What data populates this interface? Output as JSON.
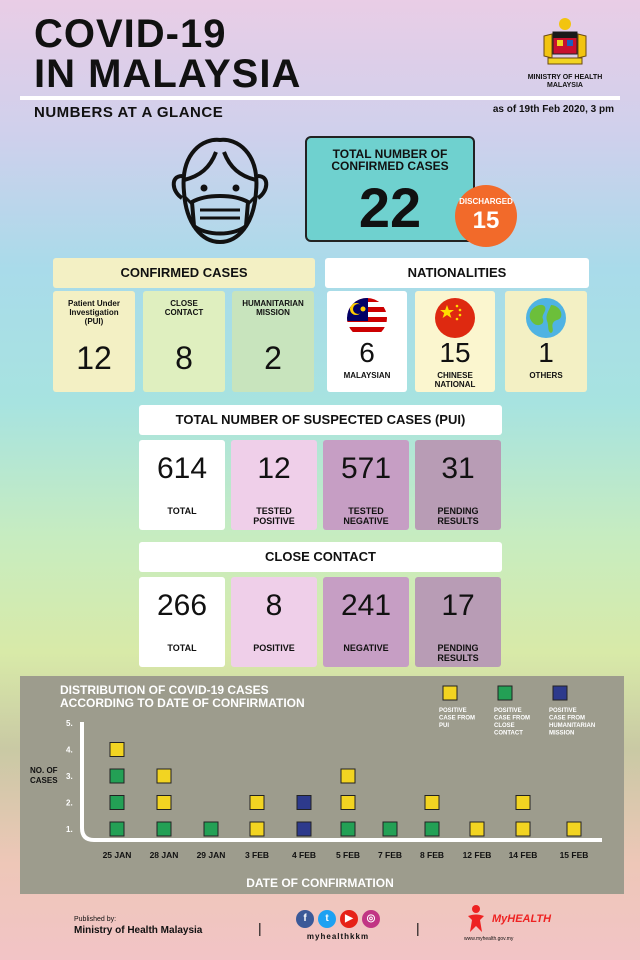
{
  "header": {
    "title_line1": "COVID-19",
    "title_line2": "IN MALAYSIA",
    "subtitle": "NUMBERS AT A GLANCE",
    "as_of": "as of 19th Feb 2020, 3 pm",
    "ministry_label_1": "MINISTRY OF HEALTH",
    "ministry_label_2": "MALAYSIA"
  },
  "total_confirmed": {
    "label_1": "TOTAL NUMBER OF",
    "label_2": "CONFIRMED CASES",
    "value": "22"
  },
  "discharged": {
    "label": "DISCHARGED",
    "value": "15"
  },
  "confirmed_cases": {
    "header": "CONFIRMED CASES",
    "items": [
      {
        "label": "Patient Under Investigation (PUI)",
        "value": "12"
      },
      {
        "label": "CLOSE CONTACT",
        "value": "8"
      },
      {
        "label": "HUMANITARIAN MISSION",
        "value": "2"
      }
    ]
  },
  "nationalities": {
    "header": "NATIONALITIES",
    "items": [
      {
        "label": "MALAYSIAN",
        "value": "6",
        "icon": "malaysia-flag-icon"
      },
      {
        "label_1": "CHINESE",
        "label_2": "NATIONAL",
        "value": "15",
        "icon": "china-flag-icon"
      },
      {
        "label": "OTHERS",
        "value": "1",
        "icon": "globe-icon"
      }
    ]
  },
  "suspected": {
    "header": "TOTAL NUMBER OF SUSPECTED CASES (PUI)",
    "items": [
      {
        "value": "614",
        "label_1": "TOTAL",
        "label_2": ""
      },
      {
        "value": "12",
        "label_1": "TESTED",
        "label_2": "POSITIVE"
      },
      {
        "value": "571",
        "label_1": "TESTED",
        "label_2": "NEGATIVE"
      },
      {
        "value": "31",
        "label_1": "PENDING",
        "label_2": "RESULTS"
      }
    ]
  },
  "close_contact": {
    "header": "CLOSE CONTACT",
    "items": [
      {
        "value": "266",
        "label_1": "TOTAL",
        "label_2": ""
      },
      {
        "value": "8",
        "label_1": "POSITIVE",
        "label_2": ""
      },
      {
        "value": "241",
        "label_1": "NEGATIVE",
        "label_2": ""
      },
      {
        "value": "17",
        "label_1": "PENDING",
        "label_2": "RESULTS"
      }
    ]
  },
  "colors": {
    "pui": "#f2d422",
    "close_contact": "#23a055",
    "humanitarian": "#2d3a8c",
    "chart_bg": "#9d9c8d",
    "total_box": "#6fd1cf",
    "discharged": "#f26a2a"
  },
  "chart_data": {
    "type": "scatter",
    "title_1": "DISTRIBUTION OF COVID-19 CASES",
    "title_2": "ACCORDING TO DATE OF CONFIRMATION",
    "ylabel_1": "NO. OF",
    "ylabel_2": "CASES",
    "xlabel": "DATE OF CONFIRMATION",
    "yticks": [
      "1.",
      "2.",
      "3.",
      "4.",
      "5."
    ],
    "categories": [
      "25 JAN",
      "28 JAN",
      "29 JAN",
      "3 FEB",
      "4 FEB",
      "5 FEB",
      "7 FEB",
      "8 FEB",
      "12 FEB",
      "14 FEB",
      "15 FEB"
    ],
    "legend": [
      {
        "name_1": "POSITIVE",
        "name_2": "CASE FROM",
        "name_3": "PUI",
        "name_4": "",
        "color": "#f2d422"
      },
      {
        "name_1": "POSITIVE",
        "name_2": "CASE FROM",
        "name_3": "CLOSE",
        "name_4": "CONTACT",
        "color": "#23a055"
      },
      {
        "name_1": "POSITIVE",
        "name_2": "CASE FROM",
        "name_3": "HUMANITARIAN",
        "name_4": "MISSION",
        "color": "#2d3a8c"
      }
    ],
    "stacks": [
      [
        "close_contact",
        "close_contact",
        "close_contact",
        "pui"
      ],
      [
        "close_contact",
        "pui",
        "pui"
      ],
      [
        "close_contact"
      ],
      [
        "pui",
        "pui"
      ],
      [
        "humanitarian",
        "humanitarian"
      ],
      [
        "close_contact",
        "pui",
        "pui"
      ],
      [
        "close_contact"
      ],
      [
        "close_contact",
        "pui"
      ],
      [
        "pui"
      ],
      [
        "pui",
        "pui"
      ],
      [
        "pui"
      ]
    ]
  },
  "footer": {
    "published_by": "Published by:",
    "ministry": "Ministry of Health Malaysia",
    "social_handle": "myhealthkkm",
    "brand": "MyHEALTH",
    "url": "www.myhealth.gov.my"
  }
}
